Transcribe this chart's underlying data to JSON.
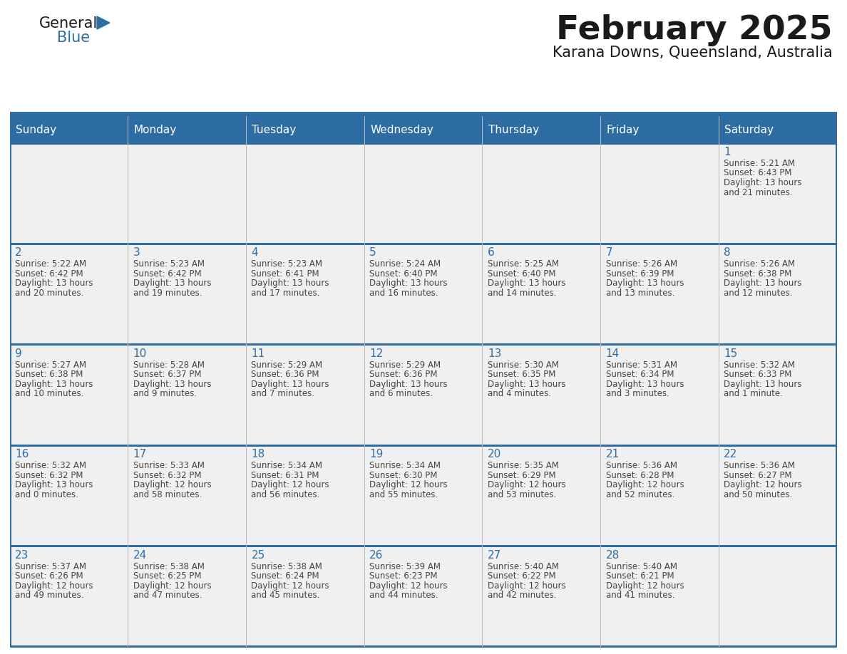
{
  "title": "February 2025",
  "subtitle": "Karana Downs, Queensland, Australia",
  "days_of_week": [
    "Sunday",
    "Monday",
    "Tuesday",
    "Wednesday",
    "Thursday",
    "Friday",
    "Saturday"
  ],
  "header_bg": "#2E6DA4",
  "header_text": "#FFFFFF",
  "cell_bg": "#F0F0F0",
  "border_color": "#2E6DA4",
  "text_color": "#444444",
  "day_num_color": "#2E6DA4",
  "logo_general_color": "#1a1a1a",
  "logo_blue_color": "#2E6DA4",
  "calendar_data": [
    [
      null,
      null,
      null,
      null,
      null,
      null,
      {
        "day": "1",
        "sunrise": "5:21 AM",
        "sunset": "6:43 PM",
        "daylight_h": "13 hours",
        "daylight_m": "and 21 minutes."
      }
    ],
    [
      {
        "day": "2",
        "sunrise": "5:22 AM",
        "sunset": "6:42 PM",
        "daylight_h": "13 hours",
        "daylight_m": "and 20 minutes."
      },
      {
        "day": "3",
        "sunrise": "5:23 AM",
        "sunset": "6:42 PM",
        "daylight_h": "13 hours",
        "daylight_m": "and 19 minutes."
      },
      {
        "day": "4",
        "sunrise": "5:23 AM",
        "sunset": "6:41 PM",
        "daylight_h": "13 hours",
        "daylight_m": "and 17 minutes."
      },
      {
        "day": "5",
        "sunrise": "5:24 AM",
        "sunset": "6:40 PM",
        "daylight_h": "13 hours",
        "daylight_m": "and 16 minutes."
      },
      {
        "day": "6",
        "sunrise": "5:25 AM",
        "sunset": "6:40 PM",
        "daylight_h": "13 hours",
        "daylight_m": "and 14 minutes."
      },
      {
        "day": "7",
        "sunrise": "5:26 AM",
        "sunset": "6:39 PM",
        "daylight_h": "13 hours",
        "daylight_m": "and 13 minutes."
      },
      {
        "day": "8",
        "sunrise": "5:26 AM",
        "sunset": "6:38 PM",
        "daylight_h": "13 hours",
        "daylight_m": "and 12 minutes."
      }
    ],
    [
      {
        "day": "9",
        "sunrise": "5:27 AM",
        "sunset": "6:38 PM",
        "daylight_h": "13 hours",
        "daylight_m": "and 10 minutes."
      },
      {
        "day": "10",
        "sunrise": "5:28 AM",
        "sunset": "6:37 PM",
        "daylight_h": "13 hours",
        "daylight_m": "and 9 minutes."
      },
      {
        "day": "11",
        "sunrise": "5:29 AM",
        "sunset": "6:36 PM",
        "daylight_h": "13 hours",
        "daylight_m": "and 7 minutes."
      },
      {
        "day": "12",
        "sunrise": "5:29 AM",
        "sunset": "6:36 PM",
        "daylight_h": "13 hours",
        "daylight_m": "and 6 minutes."
      },
      {
        "day": "13",
        "sunrise": "5:30 AM",
        "sunset": "6:35 PM",
        "daylight_h": "13 hours",
        "daylight_m": "and 4 minutes."
      },
      {
        "day": "14",
        "sunrise": "5:31 AM",
        "sunset": "6:34 PM",
        "daylight_h": "13 hours",
        "daylight_m": "and 3 minutes."
      },
      {
        "day": "15",
        "sunrise": "5:32 AM",
        "sunset": "6:33 PM",
        "daylight_h": "13 hours",
        "daylight_m": "and 1 minute."
      }
    ],
    [
      {
        "day": "16",
        "sunrise": "5:32 AM",
        "sunset": "6:32 PM",
        "daylight_h": "13 hours",
        "daylight_m": "and 0 minutes."
      },
      {
        "day": "17",
        "sunrise": "5:33 AM",
        "sunset": "6:32 PM",
        "daylight_h": "12 hours",
        "daylight_m": "and 58 minutes."
      },
      {
        "day": "18",
        "sunrise": "5:34 AM",
        "sunset": "6:31 PM",
        "daylight_h": "12 hours",
        "daylight_m": "and 56 minutes."
      },
      {
        "day": "19",
        "sunrise": "5:34 AM",
        "sunset": "6:30 PM",
        "daylight_h": "12 hours",
        "daylight_m": "and 55 minutes."
      },
      {
        "day": "20",
        "sunrise": "5:35 AM",
        "sunset": "6:29 PM",
        "daylight_h": "12 hours",
        "daylight_m": "and 53 minutes."
      },
      {
        "day": "21",
        "sunrise": "5:36 AM",
        "sunset": "6:28 PM",
        "daylight_h": "12 hours",
        "daylight_m": "and 52 minutes."
      },
      {
        "day": "22",
        "sunrise": "5:36 AM",
        "sunset": "6:27 PM",
        "daylight_h": "12 hours",
        "daylight_m": "and 50 minutes."
      }
    ],
    [
      {
        "day": "23",
        "sunrise": "5:37 AM",
        "sunset": "6:26 PM",
        "daylight_h": "12 hours",
        "daylight_m": "and 49 minutes."
      },
      {
        "day": "24",
        "sunrise": "5:38 AM",
        "sunset": "6:25 PM",
        "daylight_h": "12 hours",
        "daylight_m": "and 47 minutes."
      },
      {
        "day": "25",
        "sunrise": "5:38 AM",
        "sunset": "6:24 PM",
        "daylight_h": "12 hours",
        "daylight_m": "and 45 minutes."
      },
      {
        "day": "26",
        "sunrise": "5:39 AM",
        "sunset": "6:23 PM",
        "daylight_h": "12 hours",
        "daylight_m": "and 44 minutes."
      },
      {
        "day": "27",
        "sunrise": "5:40 AM",
        "sunset": "6:22 PM",
        "daylight_h": "12 hours",
        "daylight_m": "and 42 minutes."
      },
      {
        "day": "28",
        "sunrise": "5:40 AM",
        "sunset": "6:21 PM",
        "daylight_h": "12 hours",
        "daylight_m": "and 41 minutes."
      },
      null
    ]
  ]
}
